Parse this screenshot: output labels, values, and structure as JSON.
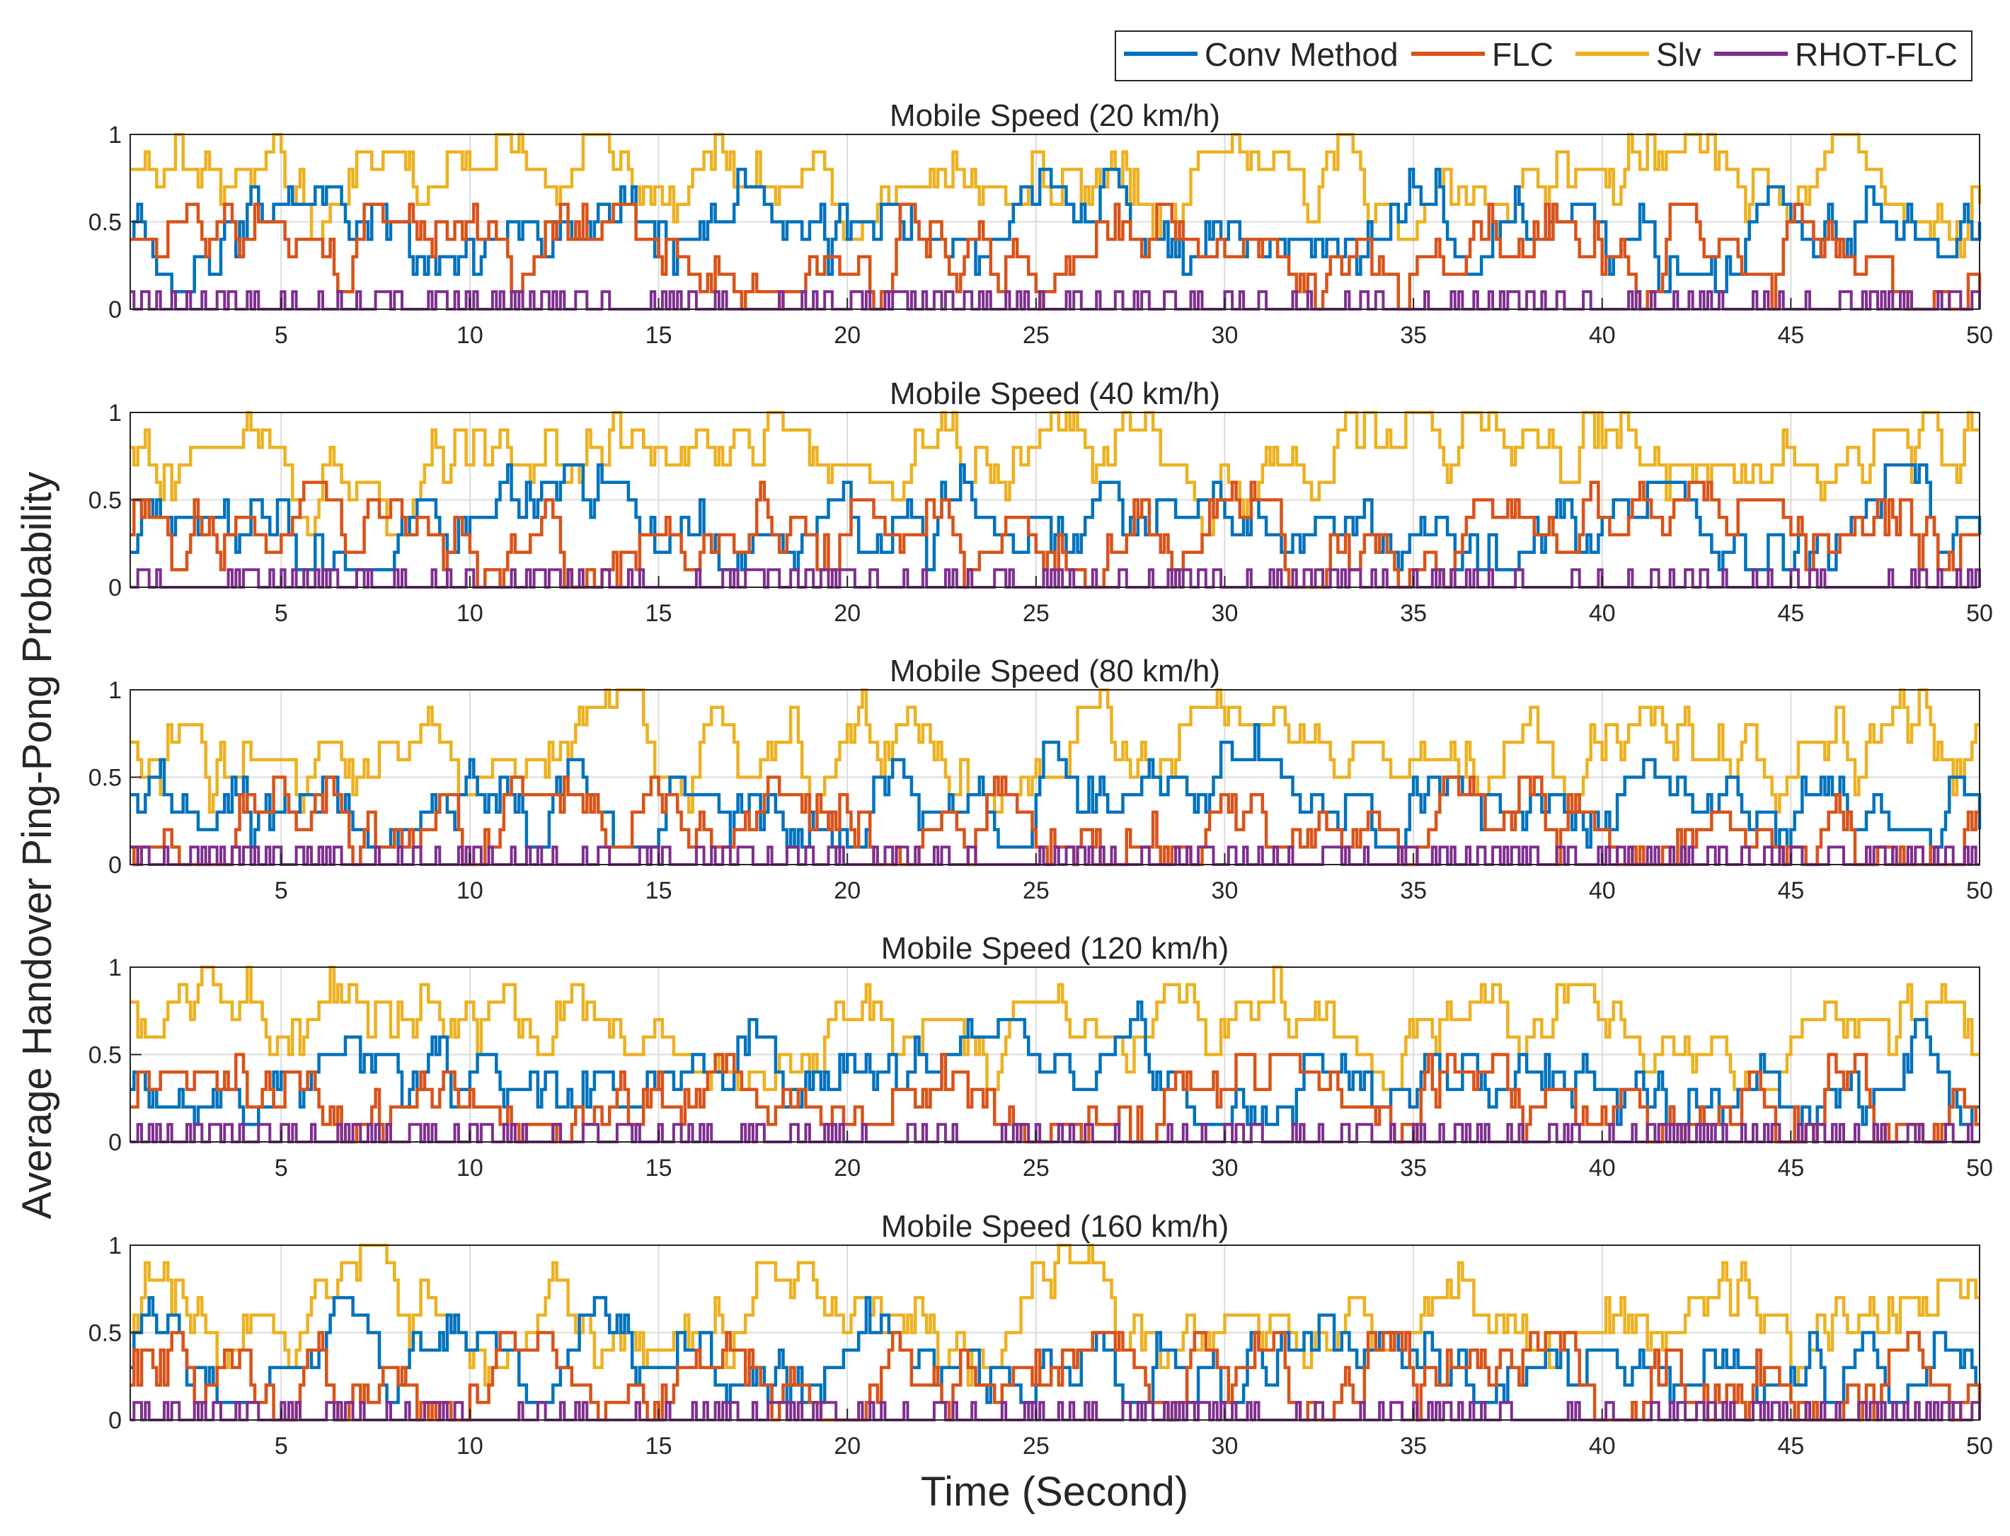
{
  "chart_data": {
    "type": "line",
    "style": "stairs",
    "ylabel": "Average Handover Ping-Pong Probability",
    "xlabel": "Time (Second)",
    "legend": {
      "placement": "top-right",
      "entries": [
        {
          "name": "Conv Method",
          "color": "#0072BD"
        },
        {
          "name": "FLC",
          "color": "#D95319"
        },
        {
          "name": "Slv",
          "color": "#EDB120"
        },
        {
          "name": "RHOT-FLC",
          "color": "#7E2F8E"
        }
      ]
    },
    "xlim": [
      1,
      50
    ],
    "ylim": [
      0,
      1
    ],
    "xticks": [
      "5",
      "10",
      "15",
      "20",
      "25",
      "30",
      "35",
      "40",
      "45",
      "50"
    ],
    "yticks": [
      "0",
      "0.5",
      "1"
    ],
    "grid": true,
    "series_note": "Each subplot contains four dense stepwise series sampled about every 0.1 s; values summarised per series as typical levels.",
    "subplots": [
      {
        "title": "Mobile Speed (20 km/h)",
        "series": [
          {
            "name": "Conv Method",
            "typical_level": 0.4,
            "range": [
              0.1,
              0.8
            ]
          },
          {
            "name": "FLC",
            "typical_level": 0.3,
            "range": [
              0.0,
              0.6
            ]
          },
          {
            "name": "Slv",
            "typical_level": 0.75,
            "range": [
              0.3,
              1.0
            ]
          },
          {
            "name": "RHOT-FLC",
            "typical_level": 0.03,
            "range": [
              0.0,
              0.1
            ]
          }
        ]
      },
      {
        "title": "Mobile Speed (40 km/h)",
        "series": [
          {
            "name": "Conv Method",
            "typical_level": 0.35,
            "range": [
              0.1,
              0.7
            ]
          },
          {
            "name": "FLC",
            "typical_level": 0.25,
            "range": [
              0.0,
              0.6
            ]
          },
          {
            "name": "Slv",
            "typical_level": 0.75,
            "range": [
              0.3,
              1.0
            ]
          },
          {
            "name": "RHOT-FLC",
            "typical_level": 0.03,
            "range": [
              0.0,
              0.1
            ]
          }
        ]
      },
      {
        "title": "Mobile Speed (80 km/h)",
        "series": [
          {
            "name": "Conv Method",
            "typical_level": 0.35,
            "range": [
              0.1,
              0.8
            ]
          },
          {
            "name": "FLC",
            "typical_level": 0.22,
            "range": [
              0.0,
              0.5
            ]
          },
          {
            "name": "Slv",
            "typical_level": 0.7,
            "range": [
              0.3,
              1.0
            ]
          },
          {
            "name": "RHOT-FLC",
            "typical_level": 0.03,
            "range": [
              0.0,
              0.1
            ]
          }
        ]
      },
      {
        "title": "Mobile Speed (120 km/h)",
        "series": [
          {
            "name": "Conv Method",
            "typical_level": 0.32,
            "range": [
              0.1,
              0.8
            ]
          },
          {
            "name": "FLC",
            "typical_level": 0.2,
            "range": [
              0.0,
              0.5
            ]
          },
          {
            "name": "Slv",
            "typical_level": 0.65,
            "range": [
              0.3,
              1.0
            ]
          },
          {
            "name": "RHOT-FLC",
            "typical_level": 0.02,
            "range": [
              0.0,
              0.1
            ]
          }
        ]
      },
      {
        "title": "Mobile Speed (160 km/h)",
        "series": [
          {
            "name": "Conv Method",
            "typical_level": 0.3,
            "range": [
              0.1,
              0.7
            ]
          },
          {
            "name": "FLC",
            "typical_level": 0.2,
            "range": [
              0.0,
              0.5
            ]
          },
          {
            "name": "Slv",
            "typical_level": 0.6,
            "range": [
              0.2,
              1.0
            ]
          },
          {
            "name": "RHOT-FLC",
            "typical_level": 0.02,
            "range": [
              0.0,
              0.1
            ]
          }
        ]
      }
    ]
  }
}
